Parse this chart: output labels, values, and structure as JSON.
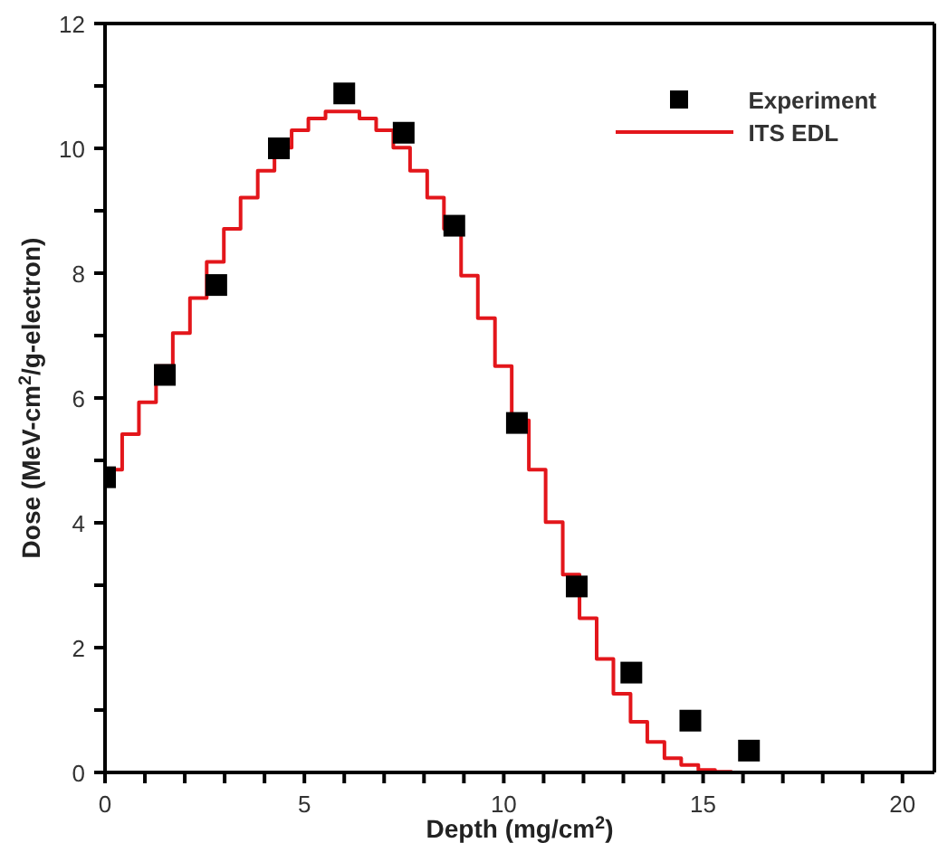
{
  "chart_data": {
    "type": "scatter",
    "xlabel": "Depth (mg/cm$^{2}$)",
    "ylabel": "Dose (MeV-cm$^{2}$/g-electron)",
    "xlim": [
      0,
      20.8
    ],
    "xticks": [
      0,
      {
        "value": 1,
        "label": null
      },
      {
        "value": 2,
        "label": null
      },
      {
        "value": 3,
        "label": null
      },
      {
        "value": 4,
        "label": null
      },
      5,
      {
        "value": 6,
        "label": null
      },
      {
        "value": 7,
        "label": null
      },
      {
        "value": 8,
        "label": null
      },
      {
        "value": 9,
        "label": null
      },
      10,
      {
        "value": 11,
        "label": null
      },
      {
        "value": 12,
        "label": null
      },
      {
        "value": 13,
        "label": null
      },
      {
        "value": 14,
        "label": null
      },
      15,
      {
        "value": 16,
        "label": null
      },
      {
        "value": 17,
        "label": null
      },
      {
        "value": 18,
        "label": null
      },
      {
        "value": 19,
        "label": null
      },
      20
    ],
    "ylim": [
      0,
      12
    ],
    "yticks": [
      0,
      {
        "value": 1,
        "label": null
      },
      2,
      {
        "value": 3,
        "label": null
      },
      4,
      {
        "value": 5,
        "label": null
      },
      6,
      {
        "value": 7,
        "label": null
      },
      8,
      {
        "value": 9,
        "label": null
      },
      10,
      {
        "value": 11,
        "label": null
      },
      12
    ],
    "grid": false,
    "legend": "top right",
    "series": [
      {
        "name": "Experiment",
        "marker": "square",
        "color": "#000000",
        "x": [
          0,
          1.5,
          2.79,
          4.36,
          6.0,
          7.49,
          8.76,
          10.33,
          11.83,
          13.2,
          14.68,
          16.15
        ],
        "values": [
          4.73,
          6.37,
          7.81,
          10.0,
          10.88,
          10.25,
          8.76,
          5.6,
          2.98,
          1.6,
          0.83,
          0.35
        ]
      },
      {
        "name": "ITS EDL",
        "type": "step",
        "marker": "none",
        "color": "#e3161b",
        "x": [
          0,
          0.43,
          0.85,
          1.28,
          1.7,
          2.13,
          2.55,
          2.98,
          3.4,
          3.83,
          4.25,
          4.68,
          5.1,
          5.53,
          5.95,
          6.38,
          6.8,
          7.23,
          7.65,
          8.08,
          8.5,
          8.93,
          9.35,
          9.78,
          10.2,
          10.63,
          11.05,
          11.48,
          11.9,
          12.33,
          12.75,
          13.18,
          13.6,
          14.03,
          14.45,
          14.88,
          15.3,
          15.73
        ],
        "values": [
          4.85,
          5.42,
          5.93,
          6.51,
          7.04,
          7.6,
          8.18,
          8.71,
          9.21,
          9.64,
          10.01,
          10.29,
          10.48,
          10.59,
          10.59,
          10.48,
          10.29,
          10.01,
          9.64,
          9.21,
          8.71,
          7.96,
          7.28,
          6.51,
          5.64,
          4.85,
          4.01,
          3.17,
          2.47,
          1.82,
          1.26,
          0.81,
          0.49,
          0.23,
          0.12,
          0.04,
          0.01,
          0.01
        ]
      }
    ]
  }
}
